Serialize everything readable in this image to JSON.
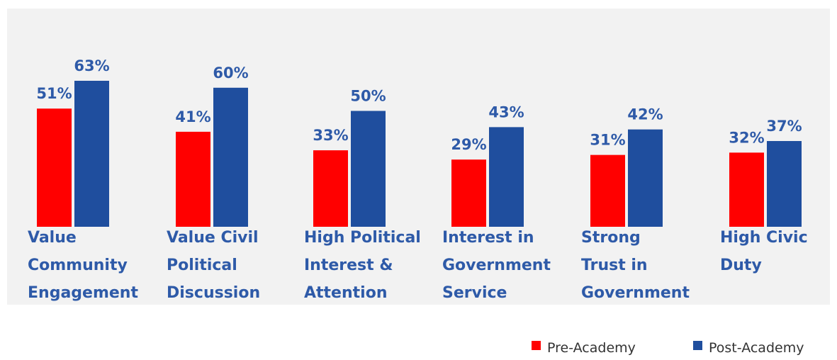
{
  "chart_data": {
    "type": "bar",
    "categories": [
      [
        "Value",
        "Community",
        "Engagement"
      ],
      [
        "Value Civil",
        "Political",
        "Discussion"
      ],
      [
        "High Political",
        "Interest &",
        "Attention"
      ],
      [
        "Interest in",
        "Government",
        "Service"
      ],
      [
        "Strong",
        "Trust in",
        "Government"
      ],
      [
        "High Civic",
        "Duty"
      ]
    ],
    "series": [
      {
        "name": "Pre-Academy",
        "color": "#ff0000",
        "values": [
          51,
          41,
          33,
          29,
          31,
          32
        ],
        "labels": [
          "51%",
          "41%",
          "33%",
          "29%",
          "31%",
          "32%"
        ]
      },
      {
        "name": "Post-Academy",
        "color": "#1f4e9e",
        "values": [
          63,
          60,
          50,
          43,
          42,
          37
        ],
        "labels": [
          "63%",
          "60%",
          "50%",
          "43%",
          "42%",
          "37%"
        ]
      }
    ],
    "title": "",
    "xlabel": "",
    "ylabel": "",
    "ylim": [
      0,
      70
    ],
    "grid": false,
    "legend_position": "bottom-right",
    "plot_background": "#f2f2f2",
    "label_color": "#2e5aa8"
  }
}
